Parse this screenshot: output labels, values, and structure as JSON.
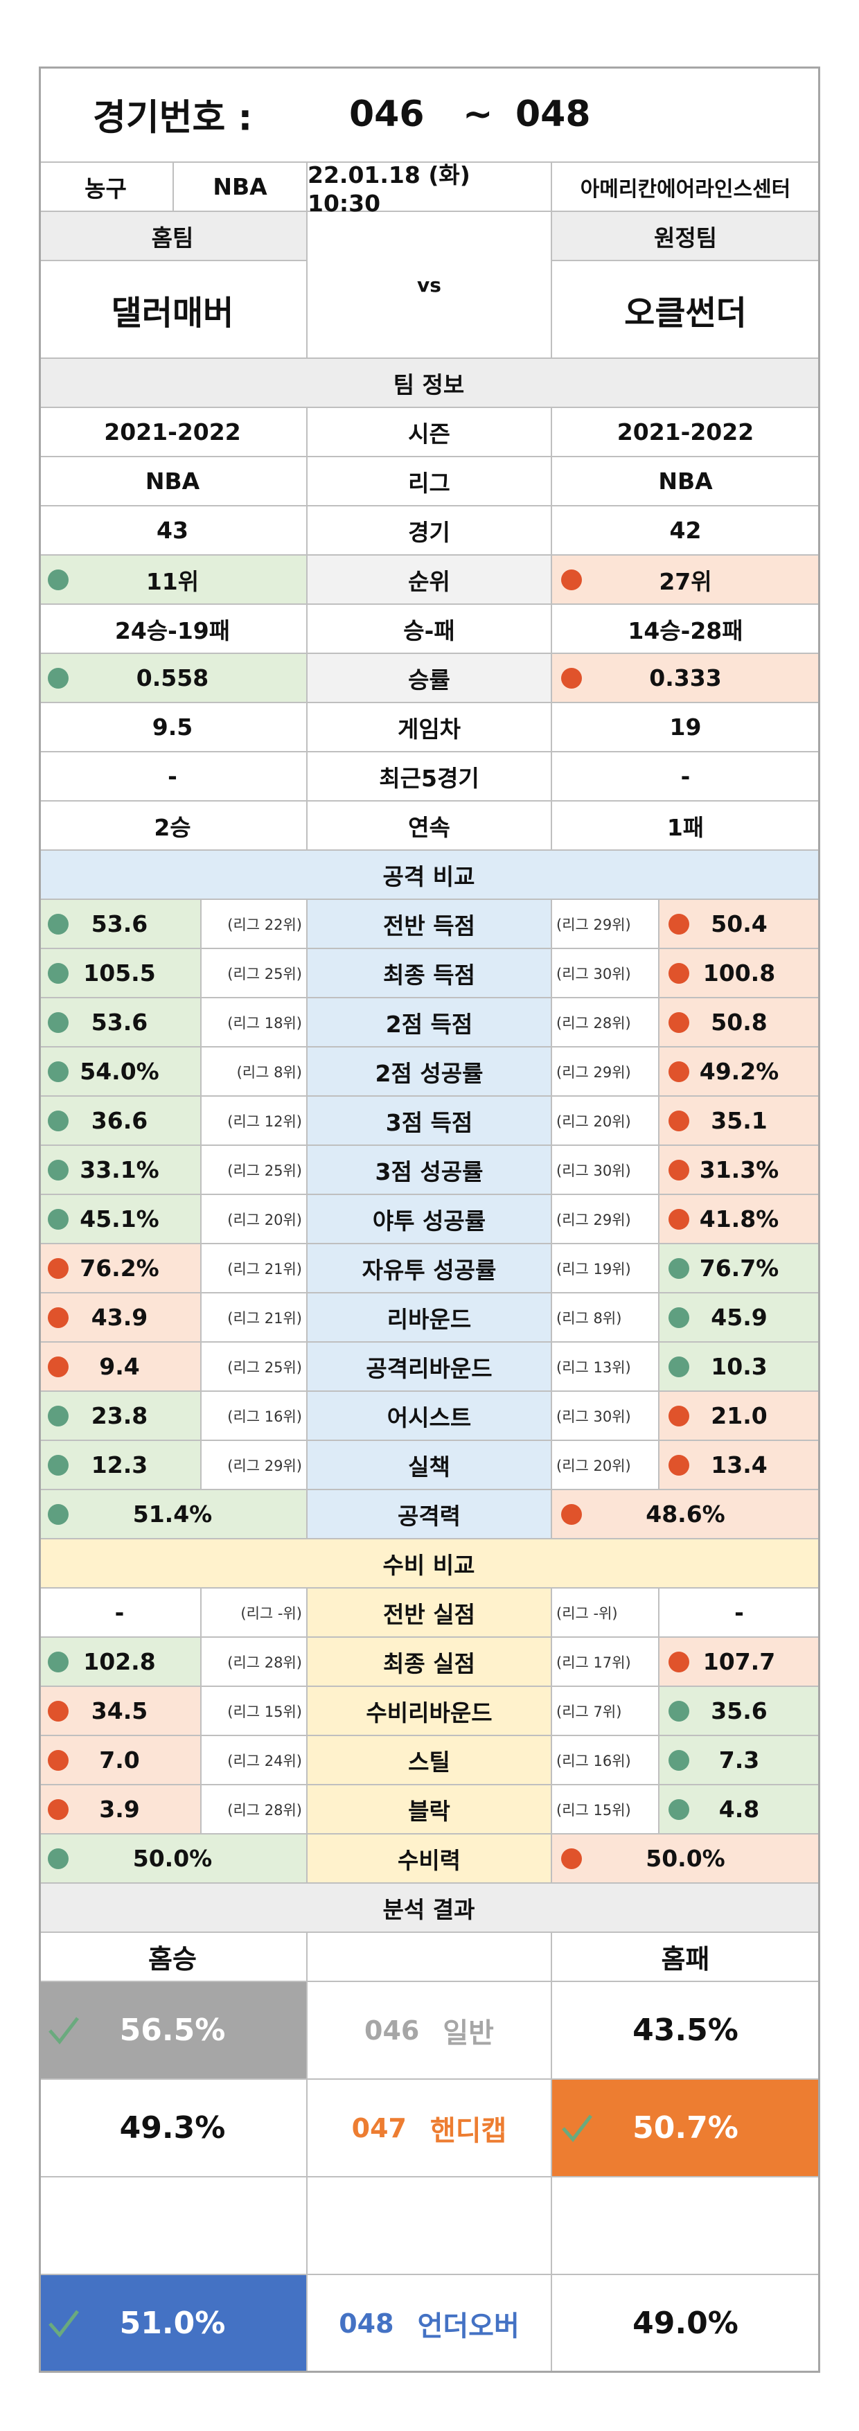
{
  "header": {
    "label": "경기번호 :",
    "from": "046",
    "separator": "~",
    "to": "048"
  },
  "match": {
    "sport": "농구",
    "league": "NBA",
    "datetime": "22.01.18 (화) 10:30",
    "venue": "아메리칸에어라인스센터"
  },
  "teams": {
    "home_label": "홈팀",
    "vs": "vs",
    "away_label": "원정팀",
    "home": "댈러매버",
    "away": "오클썬더"
  },
  "team_info": {
    "title": "팀 정보",
    "rows": [
      {
        "label": "시즌",
        "home": "2021-2022",
        "away": "2021-2022"
      },
      {
        "label": "리그",
        "home": "NBA",
        "away": "NBA"
      },
      {
        "label": "경기",
        "home": "43",
        "away": "42"
      },
      {
        "label": "순위",
        "home": "11위",
        "away": "27위",
        "home_dot": "green",
        "away_dot": "red"
      },
      {
        "label": "승-패",
        "home": "24승-19패",
        "away": "14승-28패"
      },
      {
        "label": "승률",
        "home": "0.558",
        "away": "0.333",
        "home_dot": "green",
        "away_dot": "red"
      },
      {
        "label": "게임차",
        "home": "9.5",
        "away": "19"
      },
      {
        "label": "최근5경기",
        "home": "-",
        "away": "-"
      },
      {
        "label": "연속",
        "home": "2승",
        "away": "1패"
      }
    ]
  },
  "attack": {
    "title": "공격 비교",
    "color": "#ddebf7",
    "rows": [
      {
        "label": "전반 득점",
        "home": "53.6",
        "home_rank": "(리그 22위)",
        "away": "50.4",
        "away_rank": "(리그 29위)",
        "home_dot": "green",
        "away_dot": "red"
      },
      {
        "label": "최종 득점",
        "home": "105.5",
        "home_rank": "(리그 25위)",
        "away": "100.8",
        "away_rank": "(리그 30위)",
        "home_dot": "green",
        "away_dot": "red"
      },
      {
        "label": "2점 득점",
        "home": "53.6",
        "home_rank": "(리그 18위)",
        "away": "50.8",
        "away_rank": "(리그 28위)",
        "home_dot": "green",
        "away_dot": "red"
      },
      {
        "label": "2점 성공률",
        "home": "54.0%",
        "home_rank": "(리그 8위)",
        "away": "49.2%",
        "away_rank": "(리그 29위)",
        "home_dot": "green",
        "away_dot": "red"
      },
      {
        "label": "3점 득점",
        "home": "36.6",
        "home_rank": "(리그 12위)",
        "away": "35.1",
        "away_rank": "(리그 20위)",
        "home_dot": "green",
        "away_dot": "red"
      },
      {
        "label": "3점 성공률",
        "home": "33.1%",
        "home_rank": "(리그 25위)",
        "away": "31.3%",
        "away_rank": "(리그 30위)",
        "home_dot": "green",
        "away_dot": "red"
      },
      {
        "label": "야투 성공률",
        "home": "45.1%",
        "home_rank": "(리그 20위)",
        "away": "41.8%",
        "away_rank": "(리그 29위)",
        "home_dot": "green",
        "away_dot": "red"
      },
      {
        "label": "자유투 성공률",
        "home": "76.2%",
        "home_rank": "(리그 21위)",
        "away": "76.7%",
        "away_rank": "(리그 19위)",
        "home_dot": "red",
        "away_dot": "green"
      },
      {
        "label": "리바운드",
        "home": "43.9",
        "home_rank": "(리그 21위)",
        "away": "45.9",
        "away_rank": "(리그 8위)",
        "home_dot": "red",
        "away_dot": "green"
      },
      {
        "label": "공격리바운드",
        "home": "9.4",
        "home_rank": "(리그 25위)",
        "away": "10.3",
        "away_rank": "(리그 13위)",
        "home_dot": "red",
        "away_dot": "green"
      },
      {
        "label": "어시스트",
        "home": "23.8",
        "home_rank": "(리그 16위)",
        "away": "21.0",
        "away_rank": "(리그 30위)",
        "home_dot": "green",
        "away_dot": "red"
      },
      {
        "label": "실책",
        "home": "12.3",
        "home_rank": "(리그 29위)",
        "away": "13.4",
        "away_rank": "(리그 20위)",
        "home_dot": "green",
        "away_dot": "red"
      },
      {
        "label": "공격력",
        "home": "51.4%",
        "away": "48.6%",
        "home_dot": "green",
        "away_dot": "red"
      }
    ]
  },
  "defense": {
    "title": "수비 비교",
    "color": "#fff2cc",
    "rows": [
      {
        "label": "전반 실점",
        "home": "-",
        "home_rank": "(리그 -위)",
        "away": "-",
        "away_rank": "(리그 -위)"
      },
      {
        "label": "최종 실점",
        "home": "102.8",
        "home_rank": "(리그 28위)",
        "away": "107.7",
        "away_rank": "(리그 17위)",
        "home_dot": "green",
        "away_dot": "red"
      },
      {
        "label": "수비리바운드",
        "home": "34.5",
        "home_rank": "(리그 15위)",
        "away": "35.6",
        "away_rank": "(리그 7위)",
        "home_dot": "red",
        "away_dot": "green"
      },
      {
        "label": "스틸",
        "home": "7.0",
        "home_rank": "(리그 24위)",
        "away": "7.3",
        "away_rank": "(리그 16위)",
        "home_dot": "red",
        "away_dot": "green"
      },
      {
        "label": "블락",
        "home": "3.9",
        "home_rank": "(리그 28위)",
        "away": "4.8",
        "away_rank": "(리그 15위)",
        "home_dot": "red",
        "away_dot": "green"
      },
      {
        "label": "수비력",
        "home": "50.0%",
        "away": "50.0%",
        "home_dot": "green",
        "away_dot": "red"
      }
    ]
  },
  "analysis": {
    "title": "분석 결과",
    "home_label": "홈승",
    "away_label": "홈패",
    "rows": [
      {
        "code": "046",
        "name": "일반",
        "home": "56.5%",
        "away": "43.5%",
        "pick": "home",
        "color": "#a6a6a6"
      },
      {
        "code": "047",
        "name": "핸디캡",
        "home": "49.3%",
        "away": "50.7%",
        "pick": "away",
        "color": "#ed7d31"
      },
      null,
      {
        "code": "048",
        "name": "언더오버",
        "home": "51.0%",
        "away": "49.0%",
        "pick": "home",
        "color": "#4472c4"
      }
    ]
  }
}
